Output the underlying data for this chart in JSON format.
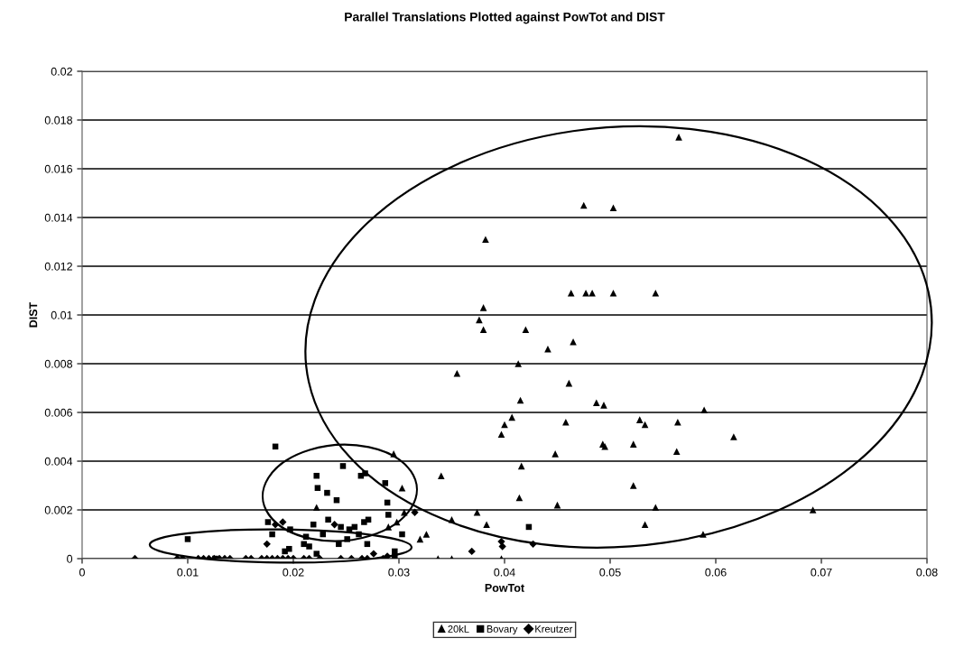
{
  "chart_data": {
    "type": "scatter",
    "title": "Parallel Translations Plotted against PowTot and DIST",
    "xlabel": "PowTot",
    "ylabel": "DIST",
    "xlim": [
      0,
      0.08
    ],
    "xticks": [
      0,
      0.01,
      0.02,
      0.03,
      0.04,
      0.05,
      0.06,
      0.07,
      0.08
    ],
    "ylim": [
      0,
      0.02
    ],
    "yticks": [
      0,
      0.002,
      0.004,
      0.006,
      0.008,
      0.01,
      0.012,
      0.014,
      0.016,
      0.018,
      0.02
    ],
    "grid": "y",
    "legend": "bottom",
    "series": [
      {
        "name": "20kL",
        "color": "#000000",
        "marker": "triangle",
        "x": [
          0.0565,
          0.0475,
          0.0503,
          0.0382,
          0.0463,
          0.0477,
          0.0483,
          0.0503,
          0.0543,
          0.038,
          0.0376,
          0.038,
          0.042,
          0.0441,
          0.0465,
          0.0355,
          0.0413,
          0.0461,
          0.0415,
          0.0487,
          0.0494,
          0.0589,
          0.0407,
          0.04,
          0.0397,
          0.0458,
          0.0528,
          0.0533,
          0.0564,
          0.0493,
          0.0495,
          0.0522,
          0.0617,
          0.0563,
          0.0448,
          0.0416,
          0.0295,
          0.034,
          0.0303,
          0.0522,
          0.0414,
          0.045,
          0.0543,
          0.0692,
          0.0533,
          0.0588,
          0.035,
          0.0374,
          0.0383,
          0.0326,
          0.032,
          0.0222,
          0.029,
          0.0298,
          0.0305,
          0.0337,
          0.035,
          0.0397
        ],
        "values": [
          0.0173,
          0.0145,
          0.0144,
          0.0131,
          0.0109,
          0.0109,
          0.0109,
          0.0109,
          0.0109,
          0.0103,
          0.0098,
          0.0094,
          0.0094,
          0.0086,
          0.0089,
          0.0076,
          0.008,
          0.0072,
          0.0065,
          0.0064,
          0.0063,
          0.0061,
          0.0058,
          0.0055,
          0.0051,
          0.0056,
          0.0057,
          0.0055,
          0.0056,
          0.0047,
          0.0046,
          0.0047,
          0.005,
          0.0044,
          0.0043,
          0.0038,
          0.0043,
          0.0034,
          0.0029,
          0.003,
          0.0025,
          0.0022,
          0.0021,
          0.002,
          0.0014,
          0.001,
          0.0016,
          0.0019,
          0.0014,
          0.001,
          0.0008,
          0.0021,
          0.0013,
          0.0015,
          0.0019,
          0.0,
          0.0,
          0.0
        ]
      },
      {
        "name": "Bovary",
        "color": "#000000",
        "marker": "square",
        "x": [
          0.0183,
          0.0222,
          0.0247,
          0.0264,
          0.0268,
          0.0223,
          0.0232,
          0.0287,
          0.0241,
          0.0289,
          0.0233,
          0.0219,
          0.0197,
          0.0176,
          0.0212,
          0.0228,
          0.0253,
          0.0267,
          0.0271,
          0.029,
          0.0245,
          0.0258,
          0.0262,
          0.027,
          0.0243,
          0.0251,
          0.0222,
          0.0196,
          0.0192,
          0.01,
          0.0126,
          0.0296,
          0.0303,
          0.0423,
          0.021,
          0.0215,
          0.018,
          0.0296
        ],
        "values": [
          0.0046,
          0.0034,
          0.0038,
          0.0034,
          0.0035,
          0.0029,
          0.0027,
          0.0031,
          0.0024,
          0.0023,
          0.0016,
          0.0014,
          0.0012,
          0.0015,
          0.0009,
          0.001,
          0.0012,
          0.0015,
          0.0016,
          0.0018,
          0.0013,
          0.0013,
          0.001,
          0.0006,
          0.0006,
          0.0008,
          0.0002,
          0.0004,
          0.0003,
          0.0008,
          0.0,
          0.0003,
          0.001,
          0.0013,
          0.0006,
          0.0005,
          0.001,
          0.0001
        ]
      },
      {
        "name": "Kreutzer",
        "color": "#000000",
        "marker": "diamond",
        "x": [
          0.005,
          0.009,
          0.0095,
          0.011,
          0.0115,
          0.012,
          0.0125,
          0.013,
          0.0135,
          0.014,
          0.0155,
          0.016,
          0.017,
          0.0175,
          0.018,
          0.0185,
          0.019,
          0.0195,
          0.02,
          0.021,
          0.0215,
          0.0225,
          0.0245,
          0.0255,
          0.0265,
          0.027,
          0.0285,
          0.0175,
          0.0183,
          0.019,
          0.0239,
          0.0315,
          0.0276,
          0.0289,
          0.0369,
          0.0397,
          0.0398,
          0.0427
        ],
        "values": [
          0.0,
          0.0,
          0.0,
          0.0,
          0.0,
          0.0,
          0.0,
          0.0,
          0.0,
          0.0,
          0.0,
          0.0,
          0.0,
          0.0,
          0.0,
          0.0,
          0.0,
          0.0,
          0.0,
          0.0,
          0.0,
          0.0,
          0.0,
          0.0,
          0.0,
          0.0,
          0.0,
          0.0006,
          0.0014,
          0.0015,
          0.0014,
          0.0019,
          0.0002,
          0.0001,
          0.0003,
          0.0007,
          0.0005,
          0.0006
        ]
      }
    ]
  }
}
